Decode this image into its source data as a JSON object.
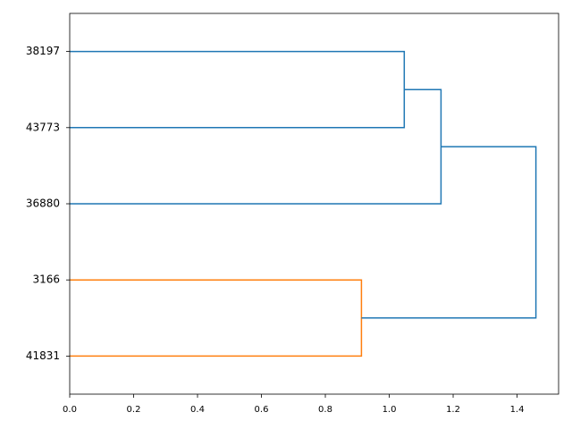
{
  "chart_data": {
    "type": "dendrogram",
    "xlim": [
      0,
      1.53
    ],
    "xticks": [
      {
        "value": 0,
        "label": "0.0"
      },
      0.2,
      0.4,
      0.6,
      0.8,
      {
        "value": 1,
        "label": "1.0"
      },
      1.2,
      1.4
    ],
    "tree": {
      "height": 1.459,
      "color": "#1f77b4",
      "children": [
        {
          "height": 1.162,
          "color": "#1f77b4",
          "children": [
            {
              "height": 1.047,
              "color": "#1f77b4",
              "children": [
                {
                  "label": "38197"
                },
                {
                  "label": "43773"
                }
              ]
            },
            {
              "label": "36880"
            }
          ]
        },
        {
          "height": 0.913,
          "color": "#ff7f0e",
          "children": [
            {
              "label": "3166"
            },
            {
              "label": "41831"
            }
          ]
        }
      ]
    }
  }
}
